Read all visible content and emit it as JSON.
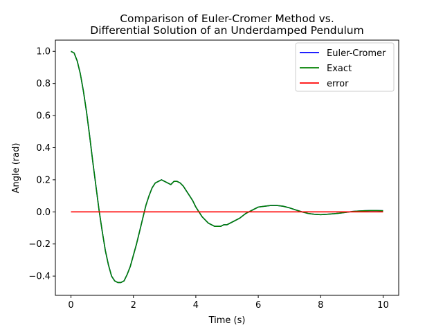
{
  "chart_data": {
    "type": "line",
    "title_lines": [
      "Comparison of Euler-Cromer Method vs.",
      "Differential Solution of an Underdamped Pendulum"
    ],
    "xlabel": "Time (s)",
    "ylabel": "Angle (rad)",
    "xlim": [
      -0.5,
      10.5
    ],
    "ylim": [
      -0.52,
      1.07
    ],
    "xticks": [
      0,
      2,
      4,
      6,
      8,
      10
    ],
    "xtick_labels": [
      "0",
      "2",
      "4",
      "6",
      "8",
      "10"
    ],
    "yticks": [
      -0.4,
      -0.2,
      0.0,
      0.2,
      0.4,
      0.6,
      0.8,
      1.0
    ],
    "ytick_labels": [
      "−0.4",
      "−0.2",
      "0.0",
      "0.2",
      "0.4",
      "0.6",
      "0.8",
      "1.0"
    ],
    "grid": false,
    "legend_position": "top-right",
    "series": [
      {
        "name": "Euler-Cromer",
        "color": "#0000ff",
        "x": [
          0,
          0.1,
          0.2,
          0.3,
          0.4,
          0.5,
          0.6,
          0.7,
          0.8,
          0.9,
          1.0,
          1.1,
          1.2,
          1.3,
          1.4,
          1.5,
          1.6,
          1.7,
          1.8,
          1.9,
          2.0,
          2.1,
          2.2,
          2.3,
          2.4,
          2.5,
          2.6,
          2.7,
          2.8,
          2.9,
          3.0,
          3.1,
          3.2,
          3.3,
          3.4,
          3.5,
          3.6,
          3.7,
          3.8,
          3.9,
          4.0,
          4.1,
          4.2,
          4.3,
          4.4,
          4.5,
          4.6,
          4.7,
          4.8,
          4.9,
          5.0,
          5.2,
          5.4,
          5.6,
          5.8,
          6.0,
          6.2,
          6.4,
          6.6,
          6.8,
          7.0,
          7.2,
          7.4,
          7.6,
          7.8,
          8.0,
          8.2,
          8.4,
          8.6,
          8.8,
          9.0,
          9.2,
          9.4,
          9.6,
          9.8,
          10.0
        ],
        "y": [
          1.0,
          0.99,
          0.94,
          0.86,
          0.75,
          0.62,
          0.47,
          0.31,
          0.16,
          0.01,
          -0.12,
          -0.24,
          -0.33,
          -0.4,
          -0.43,
          -0.44,
          -0.44,
          -0.43,
          -0.39,
          -0.34,
          -0.27,
          -0.2,
          -0.12,
          -0.04,
          0.04,
          0.1,
          0.15,
          0.18,
          0.19,
          0.2,
          0.19,
          0.18,
          0.17,
          0.19,
          0.19,
          0.18,
          0.16,
          0.13,
          0.1,
          0.07,
          0.03,
          0.0,
          -0.03,
          -0.05,
          -0.07,
          -0.08,
          -0.09,
          -0.09,
          -0.09,
          -0.08,
          -0.08,
          -0.06,
          -0.04,
          -0.01,
          0.01,
          0.03,
          0.035,
          0.04,
          0.04,
          0.035,
          0.025,
          0.012,
          0.0,
          -0.01,
          -0.015,
          -0.017,
          -0.015,
          -0.012,
          -0.008,
          -0.003,
          0.002,
          0.005,
          0.007,
          0.008,
          0.008,
          0.007
        ]
      },
      {
        "name": "Exact",
        "color": "#008000",
        "x": [
          0,
          0.1,
          0.2,
          0.3,
          0.4,
          0.5,
          0.6,
          0.7,
          0.8,
          0.9,
          1.0,
          1.1,
          1.2,
          1.3,
          1.4,
          1.5,
          1.6,
          1.7,
          1.8,
          1.9,
          2.0,
          2.1,
          2.2,
          2.3,
          2.4,
          2.5,
          2.6,
          2.7,
          2.8,
          2.9,
          3.0,
          3.1,
          3.2,
          3.3,
          3.4,
          3.5,
          3.6,
          3.7,
          3.8,
          3.9,
          4.0,
          4.1,
          4.2,
          4.3,
          4.4,
          4.5,
          4.6,
          4.7,
          4.8,
          4.9,
          5.0,
          5.2,
          5.4,
          5.6,
          5.8,
          6.0,
          6.2,
          6.4,
          6.6,
          6.8,
          7.0,
          7.2,
          7.4,
          7.6,
          7.8,
          8.0,
          8.2,
          8.4,
          8.6,
          8.8,
          9.0,
          9.2,
          9.4,
          9.6,
          9.8,
          10.0
        ],
        "y": [
          1.0,
          0.99,
          0.94,
          0.86,
          0.75,
          0.62,
          0.47,
          0.31,
          0.16,
          0.01,
          -0.12,
          -0.24,
          -0.33,
          -0.4,
          -0.43,
          -0.44,
          -0.44,
          -0.43,
          -0.39,
          -0.34,
          -0.27,
          -0.2,
          -0.12,
          -0.04,
          0.04,
          0.1,
          0.15,
          0.18,
          0.19,
          0.2,
          0.19,
          0.18,
          0.17,
          0.19,
          0.19,
          0.18,
          0.16,
          0.13,
          0.1,
          0.07,
          0.03,
          0.0,
          -0.03,
          -0.05,
          -0.07,
          -0.08,
          -0.09,
          -0.09,
          -0.09,
          -0.08,
          -0.08,
          -0.06,
          -0.04,
          -0.01,
          0.01,
          0.03,
          0.035,
          0.04,
          0.04,
          0.035,
          0.025,
          0.012,
          0.0,
          -0.01,
          -0.015,
          -0.017,
          -0.015,
          -0.012,
          -0.008,
          -0.003,
          0.002,
          0.005,
          0.007,
          0.008,
          0.008,
          0.007
        ]
      },
      {
        "name": "error",
        "color": "#ff0000",
        "x": [
          0,
          10
        ],
        "y": [
          0.0,
          0.0
        ]
      }
    ]
  }
}
